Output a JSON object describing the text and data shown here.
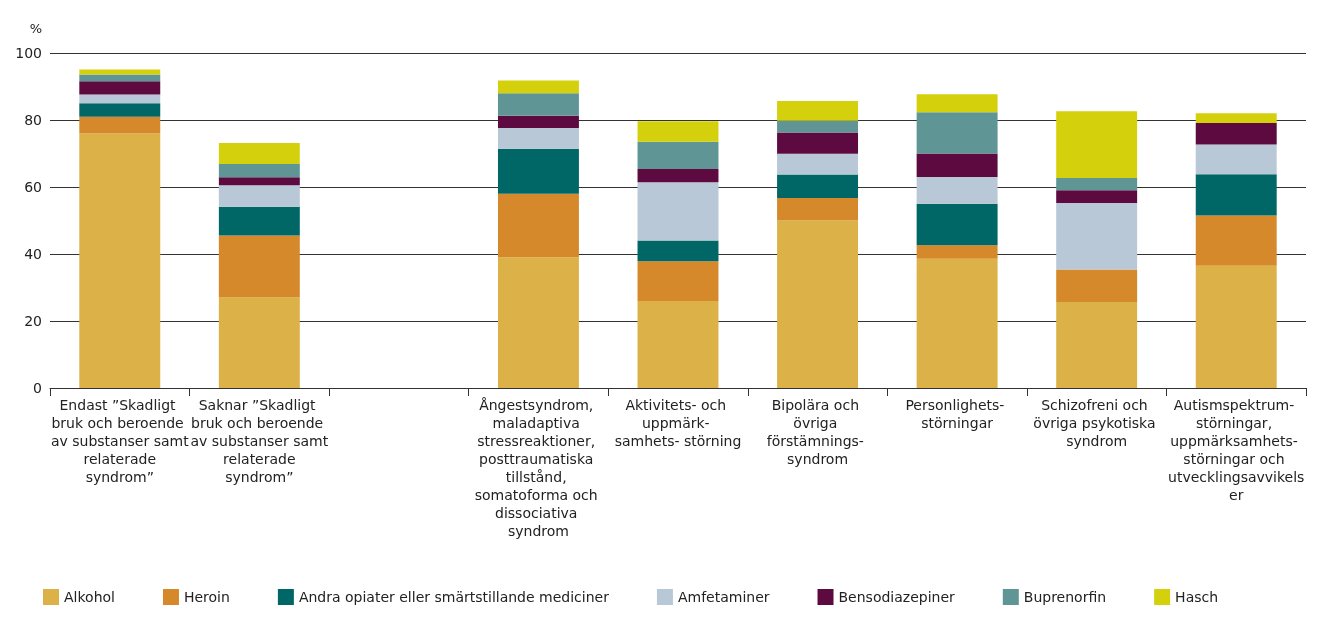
{
  "chart_data": {
    "type": "bar",
    "stacked": true,
    "ylabel": "%",
    "categories": [
      "Endast ”Skadligt bruk och beroende av substanser samt relaterade syndrom”",
      "Saknar ”Skadligt bruk och beroende av substanser samt relaterade syndrom”",
      null,
      "Ångestsyndrom, maladaptiva stressreaktioner, posttraumatiska tillstånd, somatoforma och dissociativa syndrom",
      "Aktivitets- och uppmärk- samhets- störning",
      "Bipolära och övriga förstämnings- syndrom",
      "Personlighets- störningar",
      "Schizofreni och övriga psykotiska syndrom",
      "Autismspektrum- störningar, uppmärksamhets- störningar och utvecklingsavvikelser"
    ],
    "series": [
      {
        "name": "Alkohol",
        "color": "#dcb248",
        "values": [
          76,
          27,
          null,
          39,
          26,
          50,
          38.6,
          25.7,
          36.5
        ]
      },
      {
        "name": "Heroin",
        "color": "#d6892b",
        "values": [
          5,
          18.5,
          null,
          19,
          11.8,
          6.7,
          4,
          9.7,
          15
        ]
      },
      {
        "name": "Andra opiater eller smärtstillande mediciner",
        "color": "#006666",
        "values": [
          4,
          8.6,
          null,
          13.4,
          6.2,
          7,
          12.4,
          0,
          12.3
        ]
      },
      {
        "name": "Amfetaminer",
        "color": "#b8c8d6",
        "values": [
          2.6,
          6.4,
          null,
          6.2,
          17.4,
          6.2,
          8,
          19.8,
          8.9
        ]
      },
      {
        "name": "Bensodiazepiner",
        "color": "#5c0a40",
        "values": [
          4,
          2.4,
          null,
          3.7,
          4,
          6.4,
          7,
          3.8,
          6.4
        ]
      },
      {
        "name": "Buprenorfin",
        "color": "#5f9595",
        "values": [
          2,
          4,
          null,
          6.7,
          8.1,
          3.5,
          12.3,
          3.7,
          0
        ]
      },
      {
        "name": "Hasch",
        "color": "#d4d10c",
        "values": [
          1.5,
          6.2,
          null,
          3.8,
          6.1,
          5.9,
          5.4,
          19.9,
          2.9
        ]
      }
    ],
    "ylim": [
      0,
      100
    ],
    "yticks": [
      0,
      20,
      40,
      60,
      80,
      100
    ],
    "grid": "y",
    "legend": "bottom"
  }
}
